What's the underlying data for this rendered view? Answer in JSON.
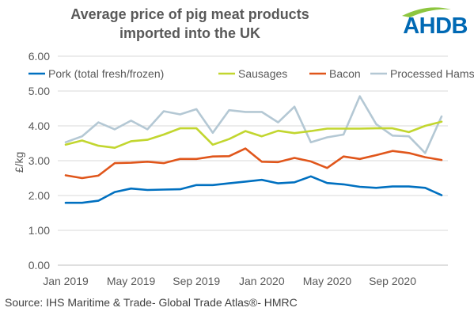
{
  "title_lines": [
    "Average price of pig meat products",
    "imported into the UK"
  ],
  "logo": {
    "text": "AHDB",
    "color": "#0069b4",
    "swoosh_color": "#8dc63f"
  },
  "source": "Source: IHS Maritime & Trade- Global Trade Atlas®- HMRC",
  "colors": {
    "grid": "#d9d9d9",
    "axis": "#bfbfbf",
    "text": "#595959"
  },
  "chart_data": {
    "type": "line",
    "title": "Average price of pig meat products imported into the UK",
    "xlabel": "",
    "ylabel": "£/kg",
    "ylim": [
      0,
      6
    ],
    "yticks": [
      "0.00",
      "1.00",
      "2.00",
      "3.00",
      "4.00",
      "5.00",
      "6.00"
    ],
    "grid": true,
    "legend_position": "top",
    "x": [
      "Jan 2019",
      "Feb 2019",
      "Mar 2019",
      "Apr 2019",
      "May 2019",
      "Jun 2019",
      "Jul 2019",
      "Aug 2019",
      "Sep 2019",
      "Oct 2019",
      "Nov 2019",
      "Dec 2019",
      "Jan 2020",
      "Feb 2020",
      "Mar 2020",
      "Apr 2020",
      "May 2020",
      "Jun 2020",
      "Jul 2020",
      "Aug 2020",
      "Sep 2020",
      "Oct 2020",
      "Nov 2020",
      "Dec 2020"
    ],
    "xtick_labels": [
      {
        "index": 0,
        "label": "Jan 2019"
      },
      {
        "index": 4,
        "label": "May 2019"
      },
      {
        "index": 8,
        "label": "Sep 2019"
      },
      {
        "index": 12,
        "label": "Jan 2020"
      },
      {
        "index": 16,
        "label": "May 2020"
      },
      {
        "index": 20,
        "label": "Sep 2020"
      }
    ],
    "series": [
      {
        "name": "Pork (total fresh/frozen)",
        "color": "#0070c0",
        "values": [
          1.79,
          1.79,
          1.85,
          2.1,
          2.2,
          2.16,
          2.17,
          2.18,
          2.3,
          2.3,
          2.35,
          2.4,
          2.45,
          2.35,
          2.38,
          2.55,
          2.36,
          2.32,
          2.25,
          2.22,
          2.26,
          2.26,
          2.22,
          2.01
        ]
      },
      {
        "name": "Sausages",
        "color": "#c2d62f",
        "values": [
          3.46,
          3.58,
          3.43,
          3.37,
          3.56,
          3.6,
          3.75,
          3.93,
          3.93,
          3.46,
          3.62,
          3.85,
          3.7,
          3.86,
          3.79,
          3.85,
          3.92,
          3.92,
          3.92,
          3.93,
          3.93,
          3.82,
          4.0,
          4.12
        ]
      },
      {
        "name": "Bacon",
        "color": "#e0561b",
        "values": [
          2.58,
          2.5,
          2.57,
          2.93,
          2.94,
          2.97,
          2.93,
          3.05,
          3.05,
          3.12,
          3.13,
          3.35,
          2.97,
          2.96,
          3.08,
          2.98,
          2.79,
          3.12,
          3.05,
          3.16,
          3.28,
          3.22,
          3.1,
          3.02
        ]
      },
      {
        "name": "Processed Hams",
        "color": "#b4c8d4",
        "values": [
          3.53,
          3.7,
          4.1,
          3.9,
          4.15,
          3.9,
          4.42,
          4.33,
          4.48,
          3.8,
          4.45,
          4.4,
          4.4,
          4.1,
          4.55,
          3.53,
          3.67,
          3.75,
          4.85,
          4.05,
          3.72,
          3.7,
          3.22,
          4.27
        ]
      }
    ]
  }
}
